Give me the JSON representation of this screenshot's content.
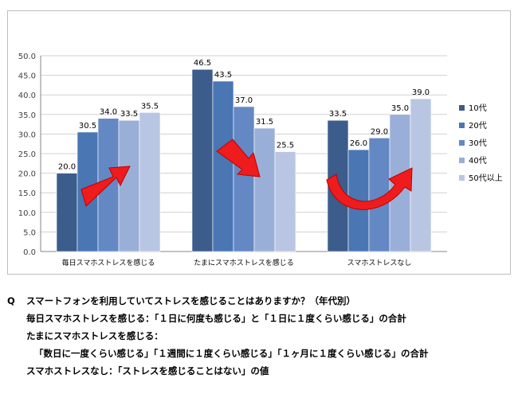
{
  "chart_data": {
    "type": "bar",
    "categories": [
      "毎日スマホストレスを感じる",
      "たまにスマホストレスを感じる",
      "スマホストレスなし"
    ],
    "series": [
      {
        "name": "10代",
        "values": [
          20.0,
          46.5,
          33.5
        ]
      },
      {
        "name": "20代",
        "values": [
          30.5,
          43.5,
          26.0
        ]
      },
      {
        "name": "30代",
        "values": [
          34.0,
          37.0,
          29.0
        ]
      },
      {
        "name": "40代",
        "values": [
          33.5,
          31.5,
          35.0
        ]
      },
      {
        "name": "50代以上",
        "values": [
          35.5,
          25.5,
          39.0
        ]
      }
    ],
    "ylim": [
      0,
      50
    ],
    "yticks": [
      "0.0",
      "5.0",
      "10.0",
      "15.0",
      "20.0",
      "25.0",
      "30.0",
      "35.0",
      "40.0",
      "45.0",
      "50.0"
    ],
    "grid": true,
    "legend": "right",
    "colors": [
      "#3c5c8c",
      "#4a76b4",
      "#6488c4",
      "#9aafd8",
      "#b9c6e3"
    ],
    "annotations": [
      "trend-arrow-up",
      "trend-arrow-down",
      "trend-arrow-curve-up"
    ],
    "arrow_color": "#ee1c1c"
  },
  "caption": {
    "q_mark": "Q",
    "question": "スマートフォンを利用していてストレスを感じることはありますか？（年代別）",
    "note1": "毎日スマホストレスを感じる：「１日に何度も感じる」と「１日に１度くらい感じる」の合計",
    "note2": "たまにスマホストレスを感じる：",
    "note3": "「数日に一度くらい感じる」「１週間に１度くらい感じる」「１ヶ月に１度くらい感じる」の合計",
    "note4": "スマホストレスなし：「ストレスを感じることはない」の値"
  }
}
